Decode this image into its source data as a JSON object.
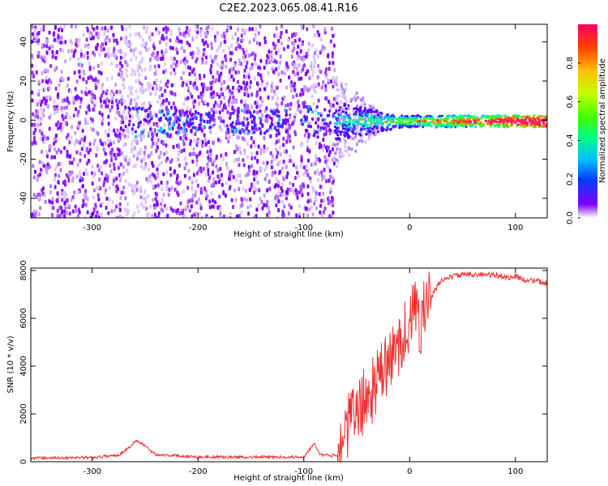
{
  "title": "C2E2.2023.065.08.41.R16",
  "chart_data": [
    {
      "type": "heatmap",
      "xlabel": "Height of straight line (km)",
      "ylabel": "Frequency (Hz)",
      "xlim": [
        -358,
        130
      ],
      "ylim": [
        -50,
        49
      ],
      "xticks": [
        -300,
        -200,
        -100,
        0,
        100
      ],
      "xtick_labels": [
        "-300",
        "-200",
        "-100",
        "0",
        "100"
      ],
      "yticks": [
        -40,
        -20,
        0,
        20,
        40
      ],
      "ytick_labels": [
        "-40",
        "-20",
        "0",
        "20",
        "40"
      ],
      "colorbar": {
        "label": "Normalized spectral amplitude",
        "range": [
          0,
          1
        ],
        "ticks": [
          0.0,
          0.2,
          0.4,
          0.6,
          0.8
        ],
        "tick_labels": [
          "0.0",
          "0.2",
          "0.4",
          "0.6",
          "0.8"
        ],
        "colormap": [
          "#ffffff",
          "#8000ff",
          "#0040ff",
          "#00c0ff",
          "#00ff80",
          "#40ff00",
          "#c0ff00",
          "#ffc000",
          "#ff4000",
          "#ff0060"
        ]
      },
      "noise_region_x": [
        -358,
        -72
      ],
      "noise_gaps_x": [
        [
          -272,
          -245
        ],
        [
          -95,
          -88
        ]
      ],
      "signal_band_y": [
        -3,
        3
      ],
      "grid": false
    },
    {
      "type": "line",
      "xlabel": "Height of straight line (km)",
      "ylabel": "SNR (10 * v/v)",
      "xlim": [
        -358,
        130
      ],
      "ylim": [
        0,
        8100
      ],
      "xticks": [
        -300,
        -200,
        -100,
        0,
        100
      ],
      "xtick_labels": [
        "-300",
        "-200",
        "-100",
        "0",
        "100"
      ],
      "yticks": [
        0,
        2000,
        4000,
        6000,
        8000
      ],
      "ytick_labels": [
        "0",
        "2000",
        "4000",
        "6000",
        "8000"
      ],
      "color": "#ef3030",
      "x": [
        -358,
        -300,
        -275,
        -265,
        -258,
        -250,
        -240,
        -200,
        -150,
        -100,
        -90,
        -85,
        -75,
        -68,
        -63,
        -55,
        -45,
        -35,
        -25,
        -15,
        -8,
        -2,
        5,
        10,
        15,
        22,
        30,
        45,
        60,
        80,
        95,
        100,
        110,
        120,
        130
      ],
      "y": [
        150,
        170,
        280,
        600,
        900,
        650,
        300,
        200,
        190,
        200,
        800,
        300,
        250,
        300,
        1000,
        1800,
        2400,
        3000,
        3800,
        4400,
        5200,
        5600,
        6400,
        5800,
        6500,
        7000,
        7600,
        7800,
        7850,
        7800,
        7700,
        7750,
        7600,
        7550,
        7450
      ],
      "grid": false
    }
  ]
}
